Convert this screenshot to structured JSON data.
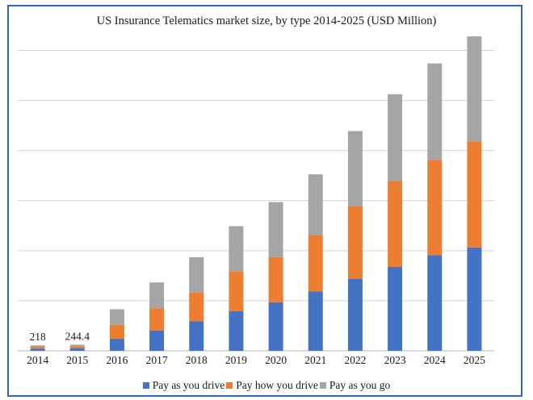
{
  "chart_data": {
    "type": "bar",
    "stacked": true,
    "title": "US Insurance Telematics market size, by type 2014-2025 (USD Million)",
    "xlabel": "",
    "ylabel": "",
    "categories": [
      "2014",
      "2015",
      "2016",
      "2017",
      "2018",
      "2019",
      "2020",
      "2021",
      "2022",
      "2023",
      "2024",
      "2025"
    ],
    "series": [
      {
        "name": "Pay as you drive",
        "color": "#4472c4",
        "values": [
          88,
          100,
          480,
          810,
          1180,
          1580,
          1940,
          2370,
          2880,
          3350,
          3820,
          4130
        ]
      },
      {
        "name": "Pay how you drive",
        "color": "#ed7d31",
        "values": [
          70,
          80,
          560,
          880,
          1150,
          1600,
          1800,
          2250,
          2900,
          3430,
          3810,
          4240
        ]
      },
      {
        "name": "Pay as you go",
        "color": "#a5a5a5",
        "values": [
          60,
          64.4,
          620,
          1040,
          1410,
          1800,
          2200,
          2430,
          3000,
          3470,
          3850,
          4190
        ]
      }
    ],
    "ylim": [
      0,
      12500
    ],
    "y_gridlines": [
      0,
      2000,
      4000,
      6000,
      8000,
      10000,
      12000
    ],
    "y_tick_labels_visible": false,
    "grid": true,
    "legend_position": "bottom",
    "data_labels": [
      {
        "category": "2014",
        "text": "218"
      },
      {
        "category": "2015",
        "text": "244.4"
      }
    ]
  }
}
